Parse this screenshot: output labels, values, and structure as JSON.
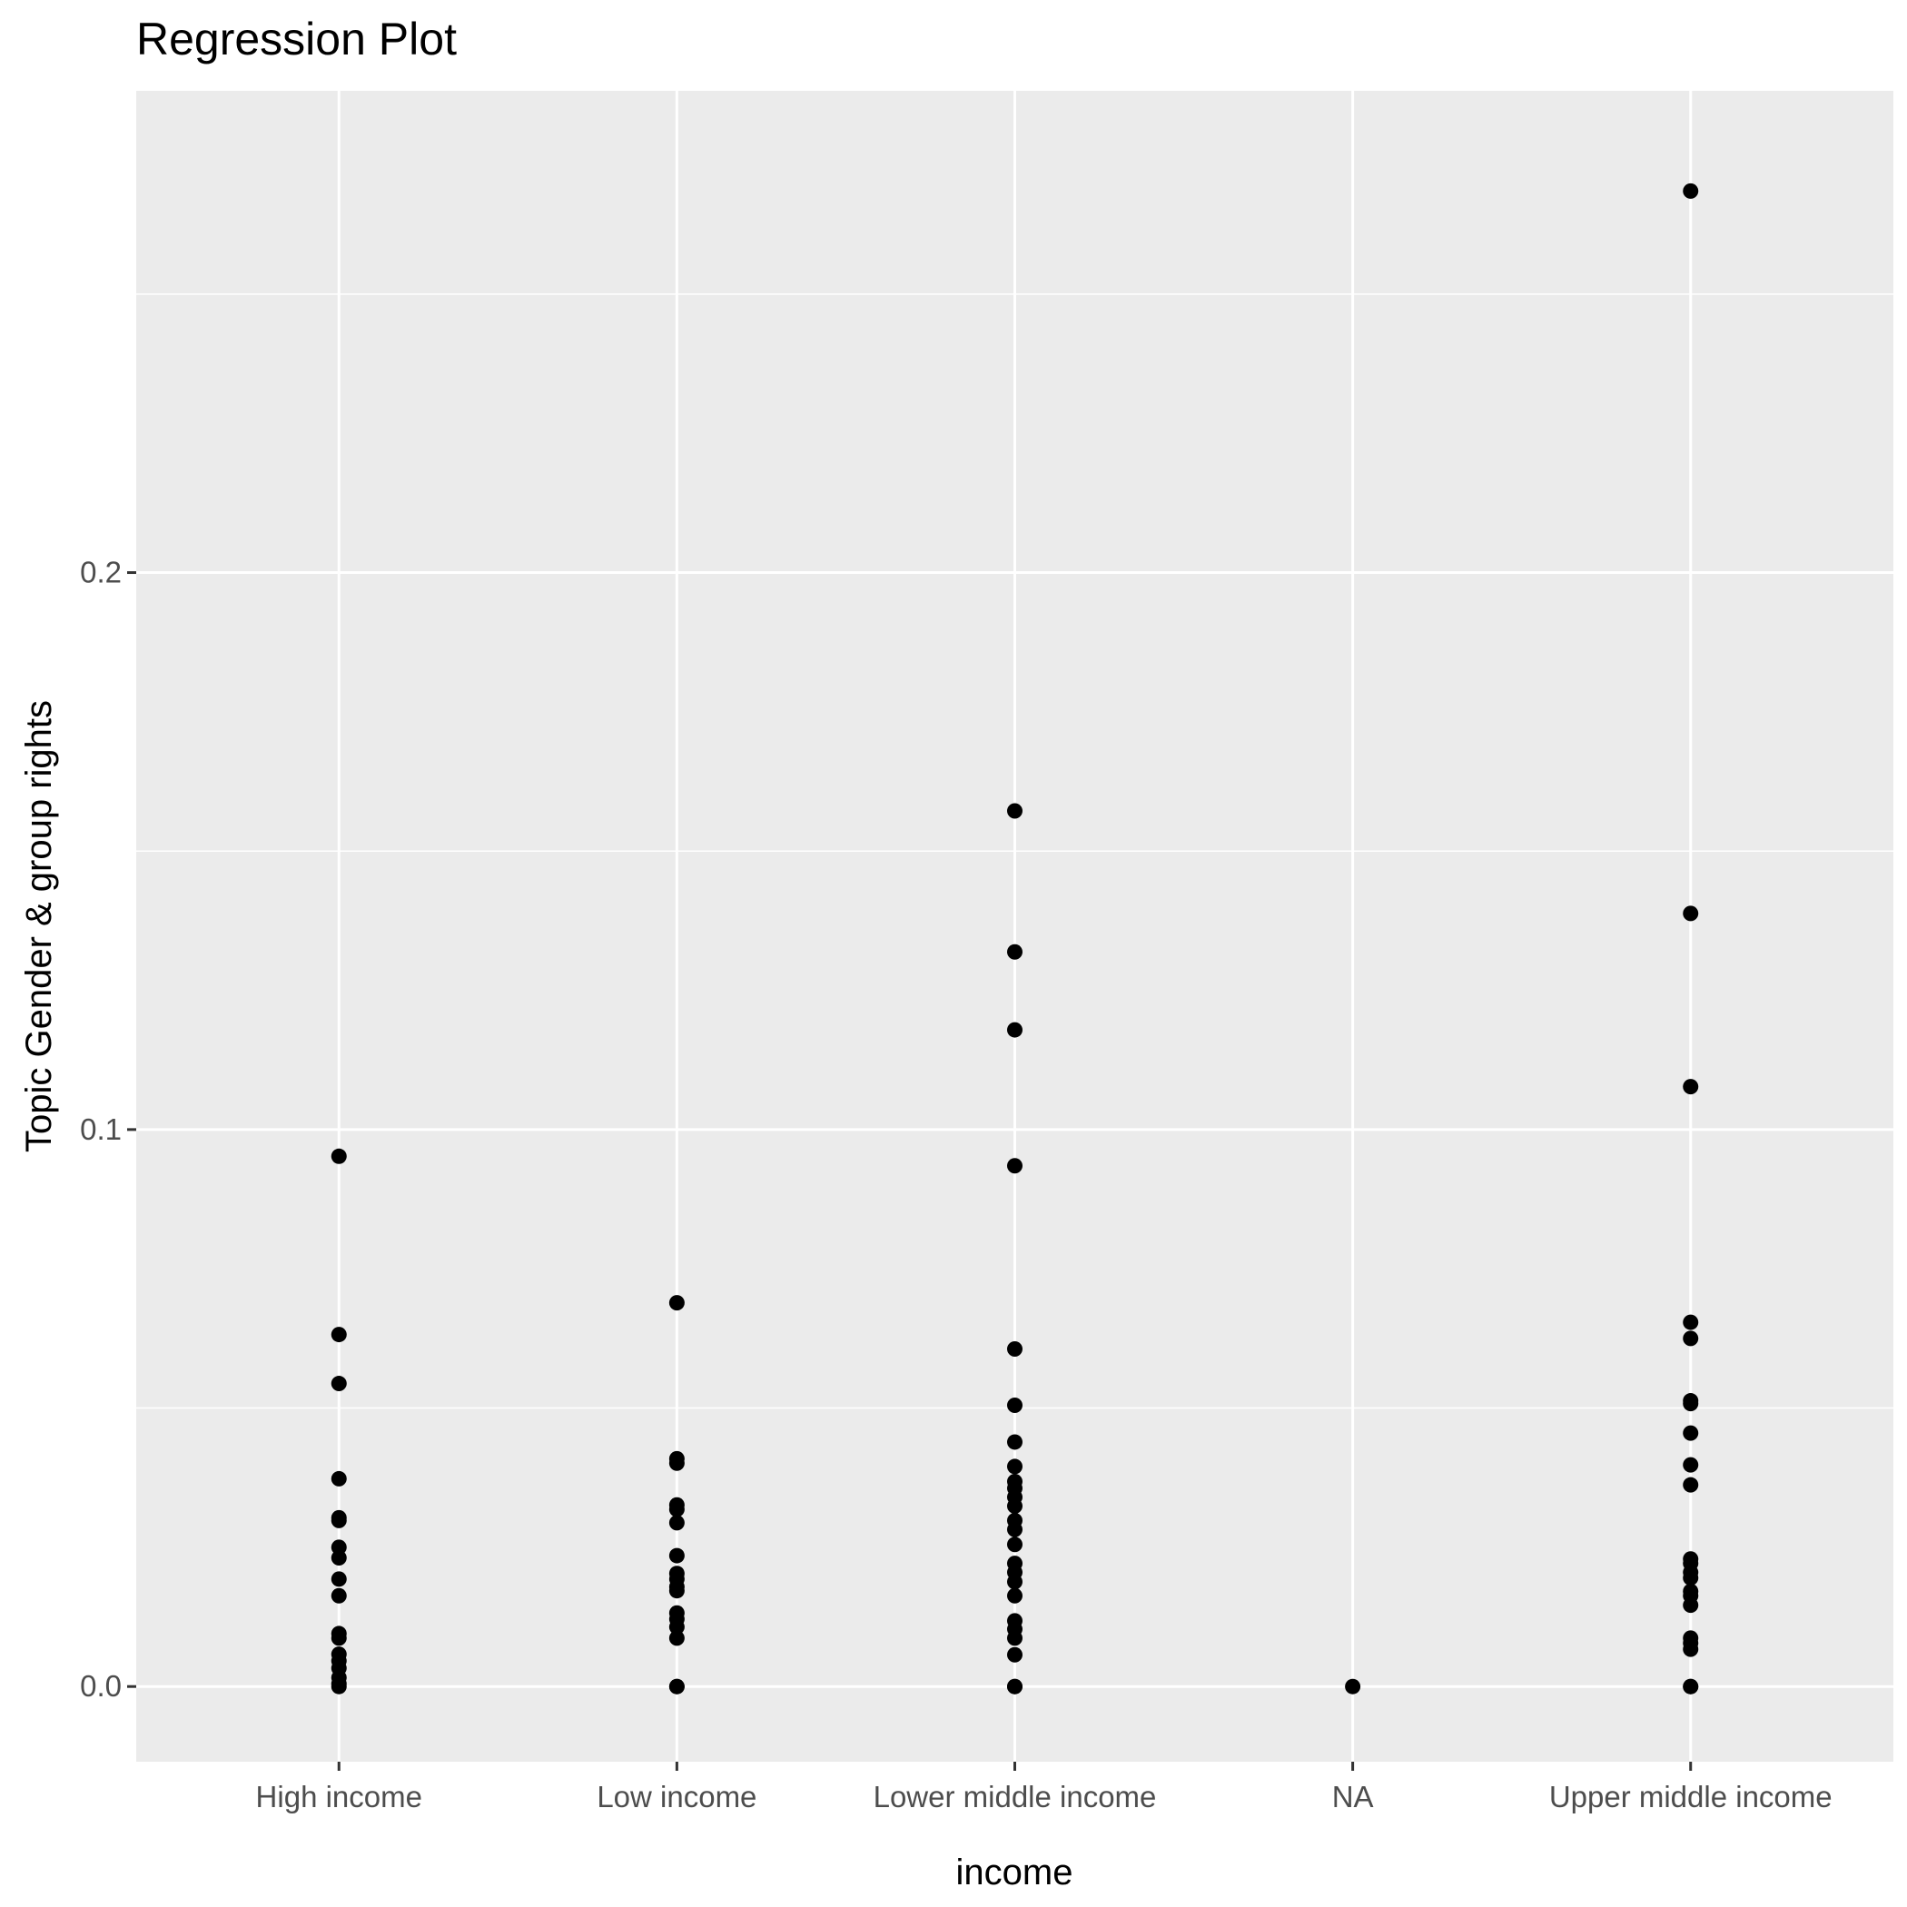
{
  "chart_data": {
    "type": "scatter",
    "title": "Regression Plot",
    "xlabel": "income",
    "ylabel": "Topic Gender & group rights",
    "categories": [
      "High income",
      "Low income",
      "Lower middle income",
      "NA",
      "Upper middle income"
    ],
    "ylim": [
      -0.0135,
      0.2865
    ],
    "y_ticks": [
      0.0,
      0.1,
      0.2
    ],
    "y_tick_labels": [
      "0.0",
      "0.1",
      "0.2"
    ],
    "grid": true,
    "background": "#ebebeb",
    "grid_color": "#ffffff",
    "point_color": "#000000",
    "series": [
      {
        "category": "High income",
        "values": [
          0.0952,
          0.0632,
          0.0544,
          0.0373,
          0.0303,
          0.0298,
          0.025,
          0.0231,
          0.0193,
          0.0163,
          0.0095,
          0.0087,
          0.0058,
          0.0046,
          0.0033,
          0.0016,
          0.0005,
          0.0
        ]
      },
      {
        "category": "Low income",
        "values": [
          0.0689,
          0.0409,
          0.0401,
          0.0326,
          0.0318,
          0.0294,
          0.0235,
          0.0203,
          0.0193,
          0.0179,
          0.0172,
          0.0132,
          0.0121,
          0.0107,
          0.0087,
          0.0,
          0.0
        ]
      },
      {
        "category": "Lower middle income",
        "values": [
          0.1572,
          0.1319,
          0.1179,
          0.0935,
          0.0606,
          0.0505,
          0.0439,
          0.0395,
          0.0368,
          0.0356,
          0.034,
          0.0324,
          0.0298,
          0.0282,
          0.0255,
          0.0221,
          0.0205,
          0.0188,
          0.0163,
          0.0118,
          0.0103,
          0.0087,
          0.0057,
          0.0,
          0.0
        ]
      },
      {
        "category": "NA",
        "values": [
          0.0
        ]
      },
      {
        "category": "Upper middle income",
        "values": [
          0.2685,
          0.1388,
          0.1077,
          0.0654,
          0.0625,
          0.0513,
          0.0508,
          0.0455,
          0.0398,
          0.0362,
          0.0229,
          0.0221,
          0.0205,
          0.0195,
          0.0171,
          0.0163,
          0.0146,
          0.0087,
          0.0078,
          0.0067,
          0.0,
          0.0
        ]
      }
    ]
  }
}
